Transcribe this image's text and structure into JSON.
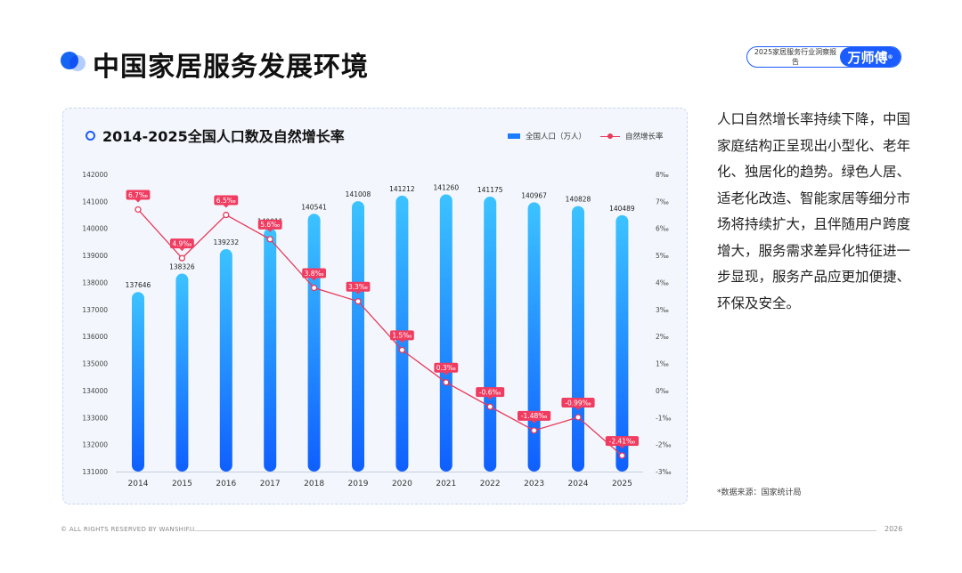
{
  "header": {
    "title": "中国家居服务发展环境",
    "report_label": "2025家居服务行业洞察报告",
    "brand": "万师傅",
    "brand_mark": "®"
  },
  "chart_card": {
    "title": "2014-2025全国人口数及自然增长率",
    "legend_population": "全国人口（万人）",
    "legend_rate": "自然增长率"
  },
  "chart_data": {
    "type": "bar",
    "title": "2014-2025全国人口数及自然增长率",
    "categories": [
      "2014",
      "2015",
      "2016",
      "2017",
      "2018",
      "2019",
      "2020",
      "2021",
      "2022",
      "2023",
      "2024",
      "2025"
    ],
    "series": [
      {
        "name": "全国人口（万人）",
        "type": "bar",
        "axis": "left",
        "values": [
          137646,
          138326,
          139232,
          140011,
          140541,
          141008,
          141212,
          141260,
          141175,
          140967,
          140828,
          140489
        ]
      },
      {
        "name": "自然增长率",
        "type": "line",
        "axis": "right",
        "values": [
          6.7,
          4.9,
          6.5,
          5.6,
          3.8,
          3.3,
          1.5,
          0.3,
          -0.6,
          -1.48,
          -0.99,
          -2.41
        ],
        "labels": [
          "6.7‰",
          "4.9‰",
          "6.5‰",
          "5.6‰",
          "3.8‰",
          "3.3‰",
          "1.5‰",
          "0.3‰",
          "-0.6‰",
          "-1.48‰",
          "-0.99‰",
          "-2.41‰"
        ]
      }
    ],
    "ylim_left": [
      131000,
      142000
    ],
    "yticks_left": [
      "131000",
      "132000",
      "133000",
      "134000",
      "135000",
      "136000",
      "137000",
      "138000",
      "139000",
      "140000",
      "141000",
      "142000"
    ],
    "ylim_right": [
      -3,
      8
    ],
    "yticks_right": [
      "-3‰",
      "-2‰",
      "-1‰",
      "0‰",
      "1‰",
      "2‰",
      "3‰",
      "4‰",
      "5‰",
      "6‰",
      "7‰",
      "8‰"
    ],
    "legend_position": "top-right",
    "grid": false,
    "colors": {
      "bar_top": "#3cc3ff",
      "bar_bottom": "#0f5fff",
      "line": "#e83a5a",
      "label_bg": "#f03c60"
    }
  },
  "description": "人口自然增长率持续下降，中国家庭结构正呈现出小型化、老年化、独居化的趋势。绿色人居、适老化改造、智能家居等细分市场将持续扩大，且伴随用户跨度增大，服务需求差异化特征进一步显现，服务产品应更加便捷、环保及安全。",
  "source": "*数据来源：国家统计局",
  "footer": {
    "copyright": "© ALL RIGHTS RESERVED BY WANSHIFU",
    "year": "2026"
  }
}
